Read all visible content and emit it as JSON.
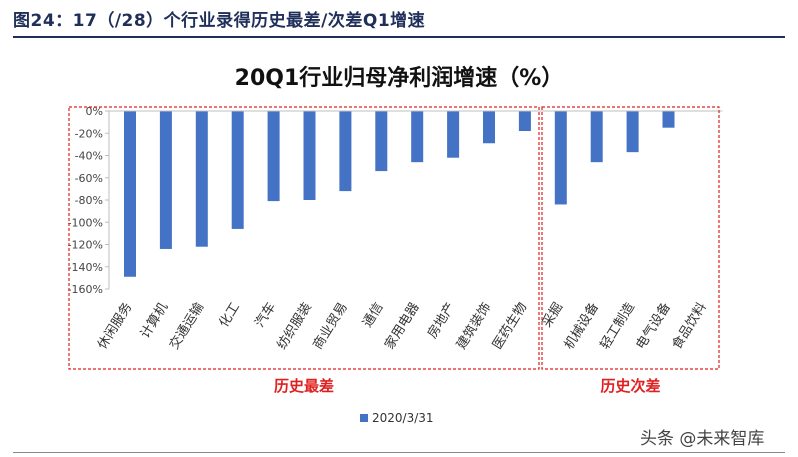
{
  "figure": {
    "title": "图24：17（/28）个行业录得历史最差/次差Q1增速",
    "watermark": "头条 @未来智库"
  },
  "chart_data": {
    "type": "bar",
    "title": "20Q1行业归母净利润增速（%）",
    "xlabel": "",
    "ylabel": "",
    "ylim": [
      -160,
      0
    ],
    "yticks": [
      "0%",
      "-20%",
      "-40%",
      "-60%",
      "-80%",
      "-100%",
      "-120%",
      "-140%",
      "-160%"
    ],
    "ytick_values": [
      0,
      -20,
      -40,
      -60,
      -80,
      -100,
      -120,
      -140,
      -160
    ],
    "grid": false,
    "legend": "bottom-center",
    "categories": [
      "休闲服务",
      "计算机",
      "交通运输",
      "化工",
      "汽车",
      "纺织服装",
      "商业贸易",
      "通信",
      "家用电器",
      "房地产",
      "建筑装饰",
      "医药生物",
      "采掘",
      "机械设备",
      "轻工制造",
      "电气设备",
      "食品饮料"
    ],
    "series": [
      {
        "name": "2020/3/31",
        "color": "#4472c4",
        "values": [
          -149,
          -124,
          -122,
          -106,
          -81,
          -80,
          -72,
          -54,
          -46,
          -42,
          -29,
          -18,
          -84,
          -46,
          -37,
          -15,
          0
        ]
      }
    ],
    "groups": [
      {
        "label": "历史最差",
        "start": 0,
        "end": 11
      },
      {
        "label": "历史次差",
        "start": 12,
        "end": 16
      }
    ]
  }
}
